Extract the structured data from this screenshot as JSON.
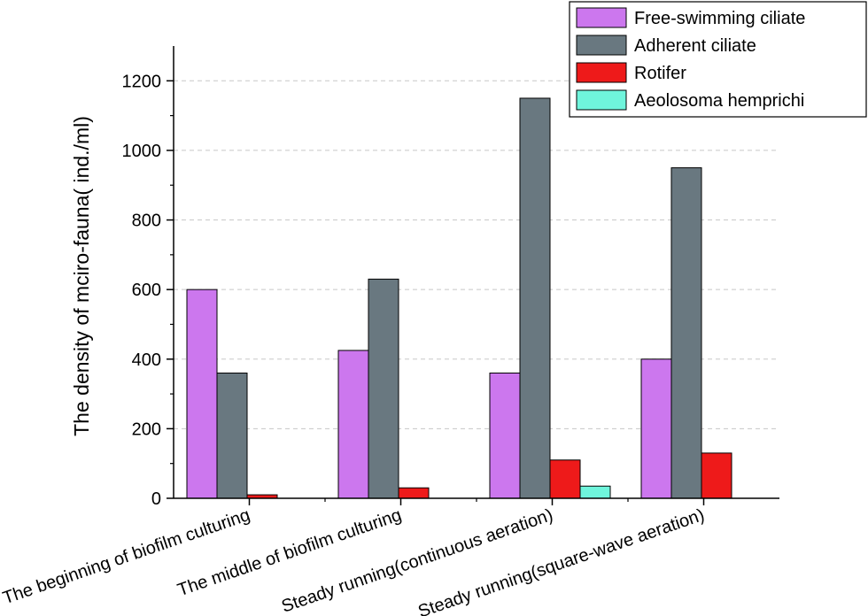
{
  "chart_data": {
    "type": "bar",
    "ylabel": "The density of mciro-fauna( ind./ml)",
    "xlabel": "",
    "ylim": [
      0,
      1300
    ],
    "yticks": [
      0,
      200,
      400,
      600,
      800,
      1000,
      1200
    ],
    "grid": "horizontal dashed",
    "legend_position": "top-right",
    "categories": [
      "The beginning of biofilm culturing",
      "The middle of biofilm culturing",
      "Steady running(continuous aeration)",
      "Steady running(square-wave aeration)"
    ],
    "series": [
      {
        "name": "Free-swimming ciliate",
        "color": "#cc77ee",
        "values": [
          600,
          425,
          360,
          400
        ]
      },
      {
        "name": "Adherent ciliate",
        "color": "#697880",
        "values": [
          360,
          630,
          1150,
          950
        ]
      },
      {
        "name": "Rotifer",
        "color": "#ee1a1a",
        "values": [
          10,
          30,
          110,
          130
        ]
      },
      {
        "name": "Aeolosoma hemprichi",
        "color": "#6ff5dc",
        "values": [
          0,
          0,
          35,
          0
        ]
      }
    ]
  }
}
